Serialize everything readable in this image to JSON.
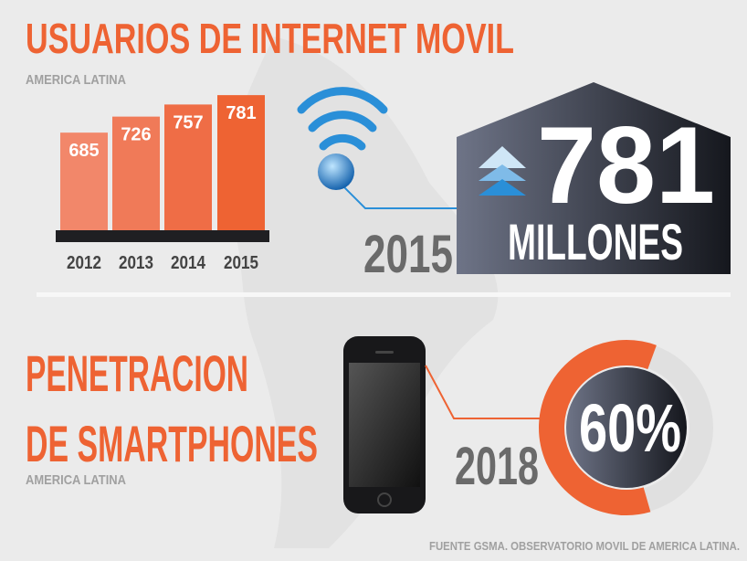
{
  "header": {
    "title": "USUARIOS DE INTERNET MOVIL",
    "subtitle": "AMERICA LATINA"
  },
  "bar_chart": {
    "type": "bar",
    "categories": [
      "2012",
      "2013",
      "2014",
      "2015"
    ],
    "values": [
      685,
      726,
      757,
      781
    ],
    "colors": [
      "#f2876a",
      "#f07a58",
      "#ef6d46",
      "#ee6333"
    ],
    "ylim": [
      435,
      800
    ]
  },
  "highlight": {
    "unit": "MILLONES"
  },
  "smartphones": {
    "title_lines": [
      "PENETRACION",
      "DE SMARTPHONES"
    ],
    "subtitle": "AMERICA LATINA",
    "year": "2018",
    "type": "donut",
    "value": 60,
    "value_label": "60%",
    "color": "#ee6333"
  },
  "source": "FUENTE GSMA. OBSERVATORIO MOVIL DE AMERICA LATINA."
}
